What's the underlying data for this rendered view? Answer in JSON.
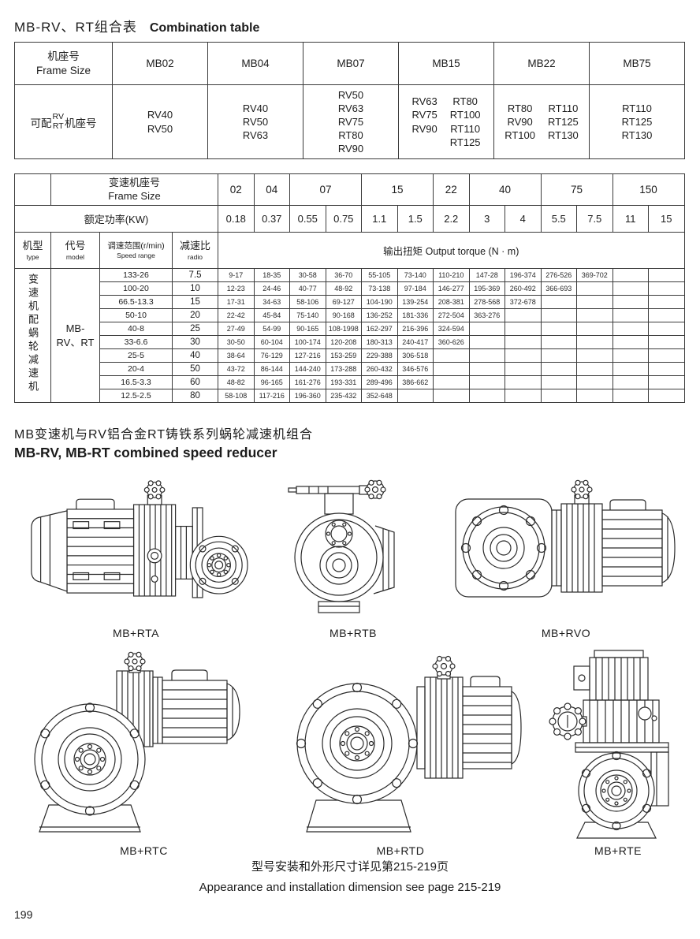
{
  "page": {
    "title_zh": "MB-RV、RT组合表",
    "title_en": "Combination table",
    "section_title_zh": "MB变速机与RV铝合金RT铸铁系列蜗轮减速机组合",
    "section_title_en": "MB-RV, MB-RT combined speed reducer",
    "footer_zh": "型号安装和外形尺寸详见第215-219页",
    "footer_en": "Appearance and installation dimension see page 215-219",
    "page_number": "199"
  },
  "combination_table": {
    "header": {
      "frame_size_zh": "机座号",
      "frame_size_en": "Frame Size",
      "models": [
        "MB02",
        "MB04",
        "MB07",
        "MB15",
        "MB22",
        "MB75"
      ]
    },
    "row_label": {
      "prefix": "可配",
      "stack": [
        "RV",
        "RT"
      ],
      "suffix": "机座号"
    },
    "cells": [
      {
        "columns": [
          [
            "RV40",
            "RV50"
          ]
        ]
      },
      {
        "columns": [
          [
            "RV40",
            "RV50",
            "RV63"
          ]
        ]
      },
      {
        "columns": [
          [
            "RV50",
            "RV63",
            "RV75",
            "RT80",
            "RV90"
          ]
        ]
      },
      {
        "columns": [
          [
            "RV63",
            "RV75",
            "RV90"
          ],
          [
            "RT80",
            "RT100",
            "RT110",
            "RT125"
          ]
        ]
      },
      {
        "columns": [
          [
            "RT80",
            "RV90",
            "RT100"
          ],
          [
            "RT110",
            "RT125",
            "RT130"
          ]
        ]
      },
      {
        "columns": [
          [
            "RT110",
            "RT125",
            "RT130"
          ]
        ]
      }
    ]
  },
  "spec_table": {
    "frame_size_zh": "变速机座号",
    "frame_size_en": "Frame Size",
    "power_label": "额定功率(KW)",
    "frame_sizes": [
      {
        "label": "02",
        "span": 1
      },
      {
        "label": "04",
        "span": 1
      },
      {
        "label": "07",
        "span": 2
      },
      {
        "label": "15",
        "span": 2
      },
      {
        "label": "22",
        "span": 1
      },
      {
        "label": "40",
        "span": 2
      },
      {
        "label": "75",
        "span": 2
      },
      {
        "label": "150",
        "span": 2
      }
    ],
    "powers": [
      "0.18",
      "0.37",
      "0.55",
      "0.75",
      "1.1",
      "1.5",
      "2.2",
      "3",
      "4",
      "5.5",
      "7.5",
      "11",
      "15"
    ],
    "headers": {
      "type_zh": "机型",
      "type_en": "type",
      "model_zh": "代号",
      "model_en": "model",
      "speed_zh": "调速范围(r/min)",
      "speed_en": "Speed range",
      "ratio_zh": "减速比",
      "ratio_en": "radio",
      "torque": "输出扭矩 Output torque (N · m)"
    },
    "type_vertical": "变速机配蜗轮减速机",
    "model_lines": [
      "MB-",
      "RV、RT"
    ],
    "rows": [
      {
        "speed": "133-26",
        "ratio": "7.5",
        "torque": [
          "9-17",
          "18-35",
          "30-58",
          "36-70",
          "55-105",
          "73-140",
          "110-210",
          "147-28",
          "196-374",
          "276-526",
          "369-702",
          "",
          ""
        ]
      },
      {
        "speed": "100-20",
        "ratio": "10",
        "torque": [
          "12-23",
          "24-46",
          "40-77",
          "48-92",
          "73-138",
          "97-184",
          "146-277",
          "195-369",
          "260-492",
          "366-693",
          "",
          "",
          ""
        ]
      },
      {
        "speed": "66.5-13.3",
        "ratio": "15",
        "torque": [
          "17-31",
          "34-63",
          "58-106",
          "69-127",
          "104-190",
          "139-254",
          "208-381",
          "278-568",
          "372-678",
          "",
          "",
          "",
          ""
        ]
      },
      {
        "speed": "50-10",
        "ratio": "20",
        "torque": [
          "22-42",
          "45-84",
          "75-140",
          "90-168",
          "136-252",
          "181-336",
          "272-504",
          "363-276",
          "",
          "",
          "",
          "",
          ""
        ]
      },
      {
        "speed": "40-8",
        "ratio": "25",
        "torque": [
          "27-49",
          "54-99",
          "90-165",
          "108-1998",
          "162-297",
          "216-396",
          "324-594",
          "",
          "",
          "",
          "",
          "",
          ""
        ]
      },
      {
        "speed": "33-6.6",
        "ratio": "30",
        "torque": [
          "30-50",
          "60-104",
          "100-174",
          "120-208",
          "180-313",
          "240-417",
          "360-626",
          "",
          "",
          "",
          "",
          "",
          ""
        ]
      },
      {
        "speed": "25-5",
        "ratio": "40",
        "torque": [
          "38-64",
          "76-129",
          "127-216",
          "153-259",
          "229-388",
          "306-518",
          "",
          "",
          "",
          "",
          "",
          "",
          ""
        ]
      },
      {
        "speed": "20-4",
        "ratio": "50",
        "torque": [
          "43-72",
          "86-144",
          "144-240",
          "173-288",
          "260-432",
          "346-576",
          "",
          "",
          "",
          "",
          "",
          "",
          ""
        ]
      },
      {
        "speed": "16.5-3.3",
        "ratio": "60",
        "torque": [
          "48-82",
          "96-165",
          "161-276",
          "193-331",
          "289-496",
          "386-662",
          "",
          "",
          "",
          "",
          "",
          "",
          ""
        ]
      },
      {
        "speed": "12.5-2.5",
        "ratio": "80",
        "torque": [
          "58-108",
          "117-216",
          "196-360",
          "235-432",
          "352-648",
          "",
          "",
          "",
          "",
          "",
          "",
          "",
          ""
        ]
      }
    ]
  },
  "drawings": [
    {
      "label": "MB+RTA"
    },
    {
      "label": "MB+RTB"
    },
    {
      "label": "MB+RVO"
    },
    {
      "label": "MB+RTC"
    },
    {
      "label": "MB+RTD"
    },
    {
      "label": "MB+RTE"
    }
  ]
}
